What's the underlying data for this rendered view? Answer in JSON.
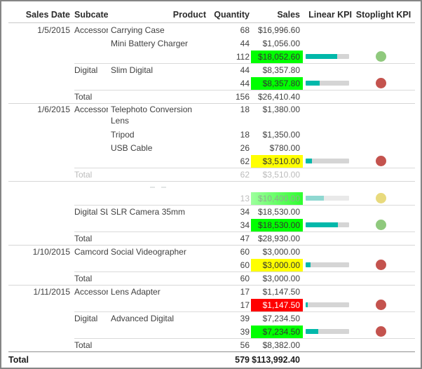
{
  "table": {
    "columns": {
      "date": "Sales Date",
      "subcategory": "Subcategory",
      "product": "Product",
      "quantity": "Quantity",
      "sales": "Sales",
      "linear_kpi": "Linear KPI",
      "stoplight_kpi": "Stoplight KPI"
    },
    "rows": [
      {
        "date": "1/5/2015",
        "subcategory": "Accessories",
        "product": "Carrying Case",
        "quantity": "68",
        "sales": "$16,996.60"
      },
      {
        "product": "Mini Battery Charger",
        "quantity": "44",
        "sales": "$1,056.00"
      },
      {
        "quantity": "112",
        "sales": "$18,052.60",
        "highlight": "#00ff00",
        "linear_kpi_pct": "72%",
        "stoplight": "#8fc97d"
      },
      {
        "subcategory": "Digital",
        "product": "Slim Digital",
        "quantity": "44",
        "sales": "$8,357.80"
      },
      {
        "quantity": "44",
        "sales": "$8,357.80",
        "highlight": "#00ff00",
        "linear_kpi_pct": "33%",
        "stoplight": "#c4534e"
      },
      {
        "subcategory": "Total",
        "quantity": "156",
        "sales": "$26,410.40"
      },
      {
        "date": "1/6/2015",
        "subcategory": "Accessories",
        "product": "Telephoto Conversion Lens",
        "quantity": "18",
        "sales": "$1,380.00"
      },
      {
        "product": "Tripod",
        "quantity": "18",
        "sales": "$1,350.00"
      },
      {
        "product": "USB Cable",
        "quantity": "26",
        "sales": "$780.00"
      },
      {
        "quantity": "62",
        "sales": "$3,510.00",
        "highlight": "#ffff00",
        "linear_kpi_pct": "14%",
        "stoplight": "#c4534e"
      },
      {
        "subcategory": "Total",
        "quantity": "62",
        "sales": "$3,510.00"
      },
      {
        "quantity": "13",
        "sales": "$10,400.00",
        "highlight": "#00ff00",
        "linear_kpi_pct": "42%",
        "stoplight": "#e8da7d"
      },
      {
        "subcategory": "Digital SLR",
        "product": "SLR Camera 35mm",
        "quantity": "34",
        "sales": "$18,530.00"
      },
      {
        "quantity": "34",
        "sales": "$18,530.00",
        "highlight": "#00ff00",
        "linear_kpi_pct": "74%",
        "stoplight": "#8fc97d"
      },
      {
        "subcategory": "Total",
        "quantity": "47",
        "sales": "$28,930.00"
      },
      {
        "date": "1/10/2015",
        "subcategory": "Camcorders",
        "product": "Social Videographer",
        "quantity": "60",
        "sales": "$3,000.00"
      },
      {
        "quantity": "60",
        "sales": "$3,000.00",
        "highlight": "#ffff00",
        "linear_kpi_pct": "12%",
        "stoplight": "#c4534e"
      },
      {
        "subcategory": "Total",
        "quantity": "60",
        "sales": "$3,000.00"
      },
      {
        "date": "1/11/2015",
        "subcategory": "Accessories",
        "product": "Lens Adapter",
        "quantity": "17",
        "sales": "$1,147.50"
      },
      {
        "quantity": "17",
        "sales": "$1,147.50",
        "highlight": "#ff0000",
        "linear_kpi_pct": "5%",
        "stoplight": "#c4534e"
      },
      {
        "subcategory": "Digital",
        "product": "Advanced Digital",
        "quantity": "39",
        "sales": "$7,234.50"
      },
      {
        "quantity": "39",
        "sales": "$7,234.50",
        "highlight": "#00ff00",
        "linear_kpi_pct": "29%",
        "stoplight": "#c4534e"
      }
    ],
    "grand_total": {
      "label": "Total",
      "quantity": "579",
      "sales": "$113,992.40"
    },
    "group_totals": [
      {
        "subcategory": "Total",
        "quantity": "56",
        "sales": "$8,382.00"
      }
    ]
  },
  "colors": {
    "kpi_bar": "#01b8aa",
    "kpi_track": "#d5d5d5",
    "highlight_green": "#00ff00",
    "highlight_yellow": "#ffff00",
    "highlight_red": "#ff0000",
    "stoplight_green": "#8fc97d",
    "stoplight_red": "#c4534e",
    "stoplight_yellow": "#e8da7d"
  }
}
